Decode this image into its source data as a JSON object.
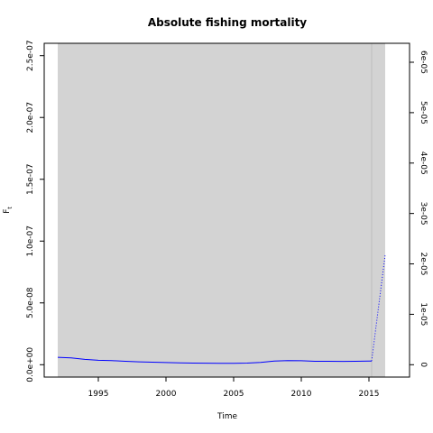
{
  "chart_data": {
    "type": "line",
    "title": "Absolute fishing mortality",
    "xlabel": "Time",
    "ylabel_main": "F",
    "ylabel_sub": "t",
    "xlim": [
      1991,
      2018
    ],
    "ylim": [
      -1e-08,
      2.6e-07
    ],
    "y2lim": [
      0,
      6e-05
    ],
    "x_ticks": [
      {
        "value": 1995,
        "label": "1995"
      },
      {
        "value": 2000,
        "label": "2000"
      },
      {
        "value": 2005,
        "label": "2005"
      },
      {
        "value": 2010,
        "label": "2010"
      },
      {
        "value": 2015,
        "label": "2015"
      }
    ],
    "y_ticks": [
      {
        "value": 0,
        "label": "0.0e+00"
      },
      {
        "value": 5e-08,
        "label": "5.0e-08"
      },
      {
        "value": 1e-07,
        "label": "1.0e-07"
      },
      {
        "value": 1.5e-07,
        "label": "1.5e-07"
      },
      {
        "value": 2e-07,
        "label": "2.0e-07"
      },
      {
        "value": 2.5e-07,
        "label": "2.5e-07"
      }
    ],
    "y2_ticks": [
      {
        "value": 0,
        "label": "0"
      },
      {
        "value": 1e-05,
        "label": "1e-05"
      },
      {
        "value": 2e-05,
        "label": "2e-05"
      },
      {
        "value": 3e-05,
        "label": "3e-05"
      },
      {
        "value": 4e-05,
        "label": "4e-05"
      },
      {
        "value": 5e-05,
        "label": "5e-05"
      },
      {
        "value": 6e-05,
        "label": "6e-05"
      }
    ],
    "band": {
      "x_start": 1992.0,
      "x_end": 2016.2,
      "y_low": -1e-08,
      "y_high": 2.6e-07,
      "color": "#d3d3d3"
    },
    "vline": {
      "x": 2015.2,
      "color": "#bebebe"
    },
    "series": [
      {
        "style": "solid",
        "color": "#0000ff",
        "x": [
          1992,
          1993,
          1994,
          1995,
          1996,
          1997,
          1998,
          1999,
          2000,
          2001,
          2002,
          2003,
          2004,
          2005,
          2006,
          2007,
          2008,
          2009,
          2010,
          2011,
          2012,
          2013,
          2014,
          2015,
          2015.2
        ],
        "y": [
          6e-09,
          5.5e-09,
          4.3e-09,
          3.6e-09,
          3.3e-09,
          2.8e-09,
          2.3e-09,
          2e-09,
          1.8e-09,
          1.5e-09,
          1.3e-09,
          1.2e-09,
          1.1e-09,
          1.1e-09,
          1.3e-09,
          1.9e-09,
          3e-09,
          3.3e-09,
          3.2e-09,
          2.8e-09,
          2.8e-09,
          2.7e-09,
          2.8e-09,
          3e-09,
          3e-09
        ]
      },
      {
        "style": "dotted",
        "color": "#0000ff",
        "x": [
          2015.2,
          2016.2
        ],
        "y": [
          3e-09,
          8.9e-08
        ]
      }
    ]
  }
}
